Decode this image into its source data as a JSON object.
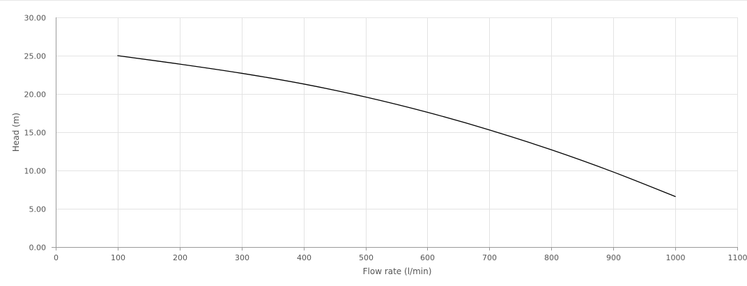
{
  "chart_data": {
    "type": "line",
    "title": "",
    "xlabel": "Flow rate (l/min)",
    "ylabel": "Head (m)",
    "xlim": [
      0,
      1100
    ],
    "ylim": [
      0,
      30
    ],
    "x_ticks": [
      "0",
      "100",
      "200",
      "300",
      "400",
      "500",
      "600",
      "700",
      "800",
      "900",
      "1000",
      "1100"
    ],
    "y_ticks": [
      "0.00",
      "5.00",
      "10.00",
      "15.00",
      "20.00",
      "25.00",
      "30.00"
    ],
    "grid": true,
    "legend": "none",
    "series": [
      {
        "color": "#000000",
        "x": [
          100,
          200,
          300,
          400,
          500,
          600,
          700,
          800,
          900,
          1000
        ],
        "y": [
          25.0,
          23.9,
          22.7,
          21.3,
          19.6,
          17.6,
          15.3,
          12.7,
          9.8,
          6.6
        ]
      }
    ]
  },
  "colors": {
    "grid": "#e3e3e3",
    "axis": "#9a9a9a",
    "text": "#555555"
  }
}
